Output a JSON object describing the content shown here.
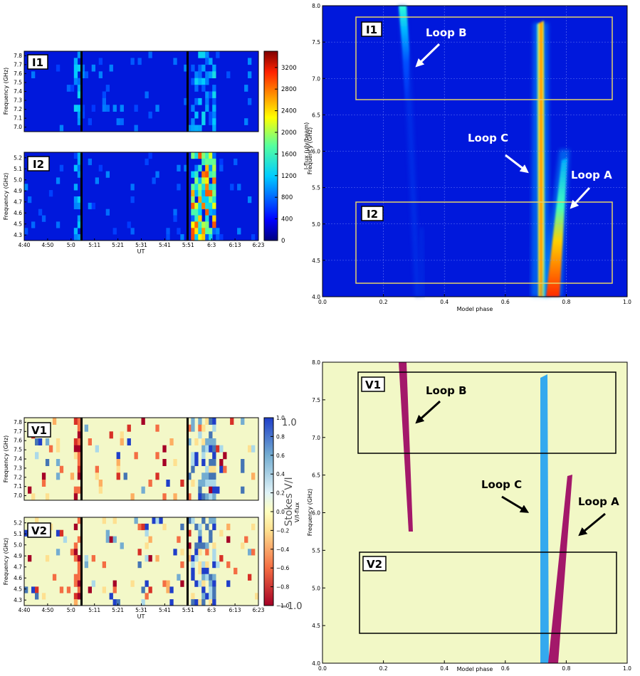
{
  "chart_data": [
    {
      "type": "heatmap",
      "panel": "I1",
      "ylabel": "Frequency (GHz)",
      "yticks": [
        "7.0",
        "7.1",
        "7.2",
        "7.3",
        "7.4",
        "7.5",
        "7.6",
        "7.7",
        "7.8"
      ],
      "ylim": [
        6.95,
        7.85
      ],
      "vlines_ut": [
        "5:05",
        "5:52"
      ]
    },
    {
      "type": "heatmap",
      "panel": "I2",
      "ylabel": "Frequency (GHz)",
      "xlabel": "UT",
      "yticks": [
        "4.3",
        "4.5",
        "4.6",
        "4.7",
        "4.9",
        "5.0",
        "5.1",
        "5.2"
      ],
      "ylim": [
        4.25,
        5.25
      ],
      "xticks": [
        "4:40",
        "4:50",
        "5:0",
        "5:11",
        "5:21",
        "5:31",
        "5:41",
        "5:51",
        "6:3",
        "6:13",
        "6:23"
      ],
      "vlines_ut": [
        "5:05",
        "5:52"
      ]
    },
    {
      "type": "colorbar",
      "label": "I-flux (μJy/beam)",
      "ticks": [
        "0",
        "400",
        "800",
        "1200",
        "1600",
        "2000",
        "2400",
        "2800",
        "3200"
      ],
      "range": [
        0,
        3500
      ],
      "colormap": "jet"
    },
    {
      "type": "heatmap",
      "panel": "Model I",
      "xlabel": "Model phase",
      "ylabel": "Frequency (GHz)",
      "xlim": [
        0.0,
        1.0
      ],
      "ylim": [
        4.0,
        8.0
      ],
      "xticks": [
        "0.0",
        "0.2",
        "0.4",
        "0.6",
        "0.8",
        "1.0"
      ],
      "yticks": [
        "4.0",
        "4.5",
        "5.0",
        "5.5",
        "6.0",
        "6.5",
        "7.0",
        "7.5",
        "8.0"
      ],
      "grid": true,
      "boxes": [
        {
          "label": "I1",
          "phase": [
            0.11,
            0.95
          ],
          "freq": [
            6.73,
            7.87
          ]
        },
        {
          "label": "I2",
          "phase": [
            0.11,
            0.95
          ],
          "freq": [
            4.17,
            5.31
          ]
        }
      ],
      "annotations": [
        "Loop B",
        "Loop C",
        "Loop A"
      ],
      "loops": [
        {
          "name": "Loop B",
          "phase_at_freq": [
            [
              0.26,
              8.0
            ],
            [
              0.28,
              6.8
            ],
            [
              0.3,
              4.0
            ]
          ]
        },
        {
          "name": "Loop C",
          "phase_at_freq": [
            [
              0.715,
              7.82
            ],
            [
              0.715,
              4.0
            ]
          ]
        },
        {
          "name": "Loop A",
          "phase_at_freq": [
            [
              0.8,
              6.0
            ],
            [
              0.745,
              4.0
            ]
          ]
        }
      ]
    },
    {
      "type": "heatmap",
      "panel": "V1",
      "ylabel": "Frequency (GHz)",
      "yticks": [
        "7.0",
        "7.1",
        "7.2",
        "7.3",
        "7.4",
        "7.5",
        "7.6",
        "7.7",
        "7.8"
      ],
      "ylim": [
        6.95,
        7.85
      ],
      "vlines_ut": [
        "5:05",
        "5:52"
      ]
    },
    {
      "type": "heatmap",
      "panel": "V2",
      "ylabel": "Frequency (GHz)",
      "xlabel": "UT",
      "yticks": [
        "4.3",
        "4.5",
        "4.6",
        "4.7",
        "4.9",
        "5.0",
        "5.1",
        "5.2"
      ],
      "ylim": [
        4.25,
        5.25
      ],
      "xticks": [
        "4:40",
        "4:50",
        "5:0",
        "5:11",
        "5:21",
        "5:31",
        "5:41",
        "5:51",
        "6:3",
        "6:13",
        "6:23"
      ],
      "vlines_ut": [
        "5:05",
        "5:52"
      ]
    },
    {
      "type": "colorbar",
      "label": "V/I-flux",
      "overlay_label": "Stokes V/I",
      "ticks": [
        "−1.0",
        "−0.8",
        "−0.6",
        "−0.4",
        "−0.2",
        "0.0",
        "0.2",
        "0.4",
        "0.6",
        "0.8",
        "1.0"
      ],
      "overlay_ticks": [
        "−1.0",
        "1.0"
      ],
      "range": [
        -1.0,
        1.0
      ],
      "colormap": "RdYlBu"
    },
    {
      "type": "heatmap",
      "panel": "Model V",
      "xlabel": "Model phase",
      "ylabel": "Frequency (GHz)",
      "xlim": [
        0.0,
        1.0
      ],
      "ylim": [
        4.0,
        8.0
      ],
      "xticks": [
        "0.0",
        "0.2",
        "0.4",
        "0.6",
        "0.8",
        "1.0"
      ],
      "yticks": [
        "4.0",
        "4.5",
        "5.0",
        "5.5",
        "6.0",
        "6.5",
        "7.0",
        "7.5",
        "8.0"
      ],
      "grid": false,
      "boxes": [
        {
          "label": "V1",
          "phase": [
            0.12,
            0.95
          ],
          "freq": [
            6.75,
            7.87
          ]
        },
        {
          "label": "V2",
          "phase": [
            0.12,
            0.95
          ],
          "freq": [
            4.3,
            5.41
          ]
        }
      ],
      "annotations": [
        "Loop B",
        "Loop C",
        "Loop A"
      ],
      "loops": [
        {
          "name": "Loop B",
          "sign": "negative",
          "phase_at_freq": [
            [
              0.25,
              8.0
            ],
            [
              0.29,
              5.7
            ]
          ]
        },
        {
          "name": "Loop C",
          "sign": "positive",
          "phase_at_freq": [
            [
              0.715,
              7.82
            ],
            [
              0.715,
              4.0
            ]
          ]
        },
        {
          "name": "Loop A",
          "sign": "negative",
          "phase_at_freq": [
            [
              0.8,
              6.45
            ],
            [
              0.745,
              4.0
            ]
          ]
        }
      ]
    }
  ],
  "colors": {
    "jet_background": "#0018dc",
    "box_yellow": "#e6d36a",
    "model_v_background": "#f2f8c6",
    "negative_loop": "#a3186a",
    "positive_loop": "#34a9ee"
  }
}
